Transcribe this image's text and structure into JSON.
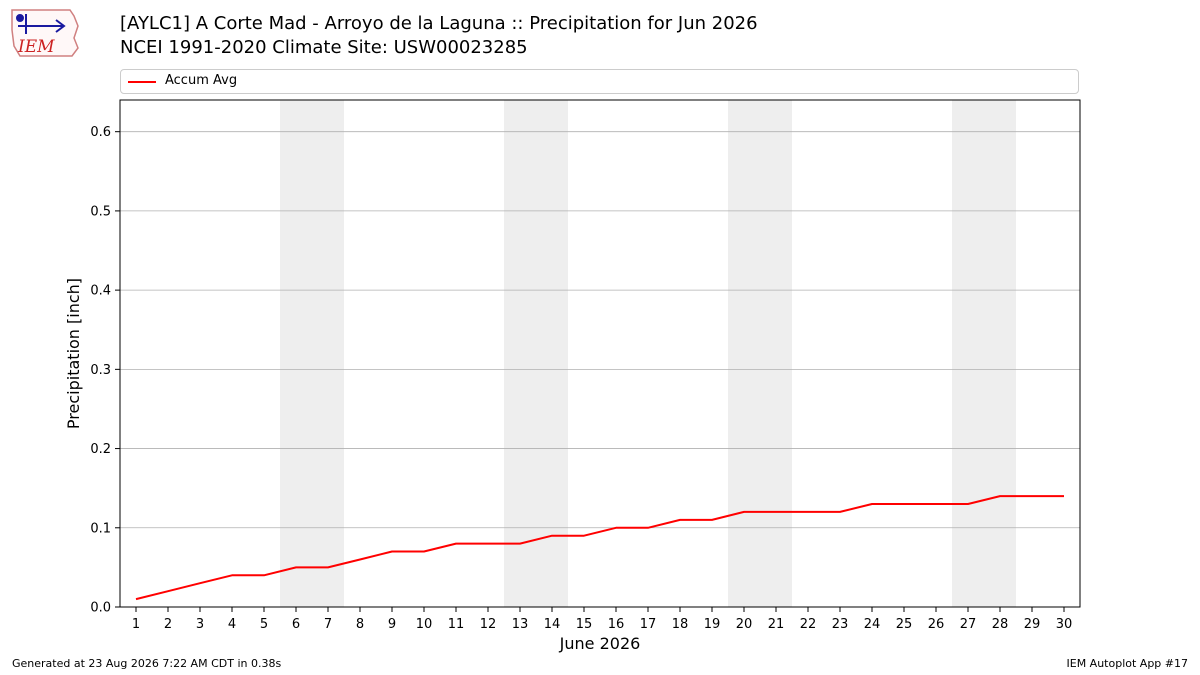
{
  "header": {
    "logo_text": "IEM",
    "title_line1": "[AYLC1] A Corte Mad - Arroyo de la Laguna :: Precipitation for Jun 2026",
    "title_line2": "NCEI 1991-2020 Climate Site: USW00023285"
  },
  "footer": {
    "generated": "Generated at 23 Aug 2026 7:22 AM CDT in 0.38s",
    "app": "IEM Autoplot App #17"
  },
  "chart_data": {
    "type": "line",
    "xlabel": "June 2026",
    "ylabel": "Precipitation [inch]",
    "xlim": [
      0.5,
      30.5
    ],
    "ylim": [
      0,
      0.64
    ],
    "yticks": [
      "0.0",
      "0.1",
      "0.2",
      "0.3",
      "0.4",
      "0.5",
      "0.6"
    ],
    "grid": "horizontal",
    "legend_position": "top",
    "weekend_shading": [
      [
        5.5,
        7.5
      ],
      [
        12.5,
        14.5
      ],
      [
        19.5,
        21.5
      ],
      [
        26.5,
        28.5
      ]
    ],
    "colors": {
      "line": "#ff0000",
      "weekend": "#eeeeee",
      "grid": "#b0b0b0"
    },
    "x": [
      1,
      2,
      3,
      4,
      5,
      6,
      7,
      8,
      9,
      10,
      11,
      12,
      13,
      14,
      15,
      16,
      17,
      18,
      19,
      20,
      21,
      22,
      23,
      24,
      25,
      26,
      27,
      28,
      29,
      30
    ],
    "series": [
      {
        "name": "Accum Avg",
        "values": [
          0.01,
          0.02,
          0.03,
          0.04,
          0.04,
          0.05,
          0.05,
          0.06,
          0.07,
          0.07,
          0.08,
          0.08,
          0.08,
          0.09,
          0.09,
          0.1,
          0.1,
          0.11,
          0.11,
          0.12,
          0.12,
          0.12,
          0.12,
          0.13,
          0.13,
          0.13,
          0.13,
          0.14,
          0.14,
          0.14
        ]
      }
    ]
  }
}
